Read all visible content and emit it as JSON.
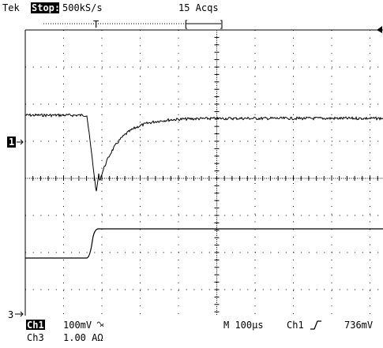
{
  "header": {
    "brand": "Tek",
    "state": "Stop:",
    "rate": "500kS/s",
    "acqs": "15 Acqs",
    "trigger_mark": "T",
    "bracket_left": "[",
    "bracket_right": "]"
  },
  "markers": {
    "ch1": "1",
    "ch3": "3"
  },
  "readout": {
    "ch1": "Ch1",
    "ch1_scale": "100mV",
    "timebase": "M 100µs",
    "trigger_source": "Ch1",
    "trigger_level": "736mV",
    "ch3": "Ch3",
    "ch3_scale": "1.00 AΩ"
  }
}
